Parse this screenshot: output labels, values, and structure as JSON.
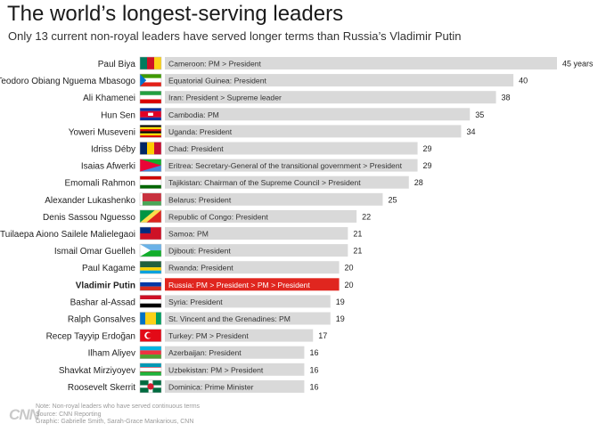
{
  "header": {
    "title": "The world’s longest-serving leaders",
    "subtitle": "Only 13 current non-royal leaders have served longer terms than Russia’s Vladimir Putin"
  },
  "colors": {
    "bar": "#d9d9d9",
    "highlight": "#e0261f",
    "text": "#222222",
    "note": "#9a9a9a"
  },
  "chart_data": {
    "type": "bar",
    "orientation": "horizontal",
    "value_suffix_first": " years",
    "categories": [
      "Paul Biya",
      "Teodoro Obiang Nguema Mbasogo",
      "Ali Khamenei",
      "Hun Sen",
      "Yoweri Museveni",
      "Idriss Déby",
      "Isaias Afwerki",
      "Emomali Rahmon",
      "Alexander Lukashenko",
      "Denis Sassou Nguesso",
      "Tuilaepa Aiono Sailele Malielegaoi",
      "Ismail Omar Guelleh",
      "Paul Kagame",
      "Vladimir Putin",
      "Bashar al-Assad",
      "Ralph Gonsalves",
      "Recep Tayyip Erdoğan",
      "Ilham Aliyev",
      "Shavkat Mirziyoyev",
      "Roosevelt Skerrit"
    ],
    "values": [
      45,
      40,
      38,
      35,
      34,
      29,
      29,
      28,
      25,
      22,
      21,
      21,
      20,
      20,
      19,
      19,
      17,
      16,
      16,
      16
    ],
    "bar_labels": [
      "Cameroon: PM > President",
      "Equatorial Guinea: President",
      "Iran: President > Supreme leader",
      "Cambodia: PM",
      "Uganda: President",
      "Chad: President",
      "Eritrea: Secretary-General of the transitional government > President",
      "Tajikistan: Chairman of the Supreme Council > President",
      "Belarus: President",
      "Republic of Congo: President",
      "Samoa: PM",
      "Djibouti: President",
      "Rwanda: President",
      "Russia: PM > President > PM > President",
      "Syria: President",
      "St. Vincent and the Grenadines: PM",
      "Turkey: PM > President",
      "Azerbaijan: President",
      "Uzbekistan: PM > President",
      "Dominica: Prime Minister"
    ],
    "highlight": "Vladimir Putin",
    "flags": [
      "flag-cameroon",
      "flag-equatorial-guinea",
      "flag-iran",
      "flag-cambodia",
      "flag-uganda",
      "flag-chad",
      "flag-eritrea",
      "flag-tajikistan",
      "flag-belarus",
      "flag-congo",
      "flag-samoa",
      "flag-djibouti",
      "flag-rwanda",
      "flag-russia",
      "flag-syria",
      "flag-st-vincent",
      "flag-turkey",
      "flag-azerbaijan",
      "flag-uzbekistan",
      "flag-dominica"
    ],
    "xlim": [
      0,
      45
    ],
    "grid": false,
    "legend": "none"
  },
  "footer": {
    "logo": "CNN",
    "note": "Note: Non-royal leaders who have served continuous terms",
    "source": "Source: CNN Reporting",
    "credit": "Graphic: Gabrielle Smith, Sarah-Grace Mankarious, CNN"
  }
}
